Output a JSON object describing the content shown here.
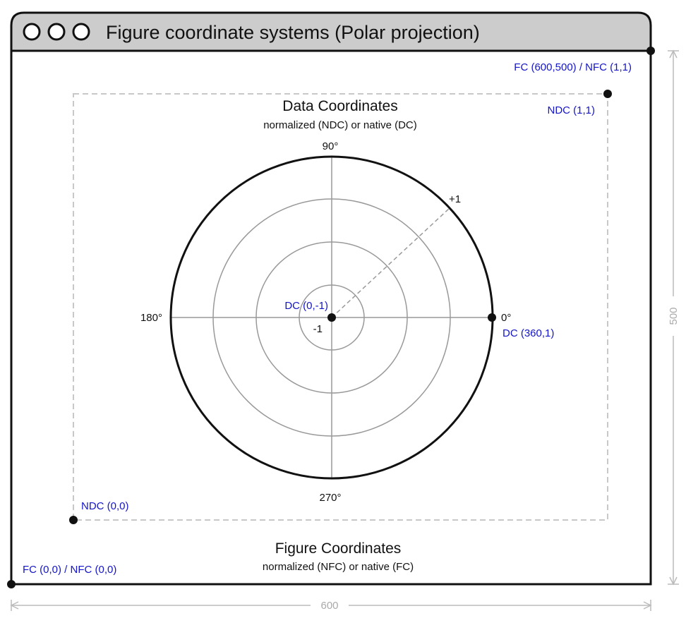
{
  "window": {
    "title": "Figure coordinate systems (Polar projection)",
    "buttons": [
      "close",
      "minimize",
      "maximize"
    ]
  },
  "figure": {
    "heading": "Figure Coordinates",
    "subheading": "normalized (NFC) or native (FC)",
    "corner_top_right": "FC (600,500) / NFC (1,1)",
    "corner_bottom_left": "FC (0,0) / NFC (0,0)",
    "width_label": "600",
    "height_label": "500"
  },
  "data_area": {
    "heading": "Data Coordinates",
    "subheading": "normalized (NDC) or native (DC)",
    "corner_top_right": "NDC (1,1)",
    "corner_bottom_left": "NDC (0,0)"
  },
  "polar": {
    "angle_labels": {
      "a0": "0°",
      "a90": "90°",
      "a180": "180°",
      "a270": "270°"
    },
    "radius_max_label": "+1",
    "radius_min_label": "-1",
    "center_label": "DC (0,-1)",
    "edge_label": "DC (360,1)"
  },
  "colors": {
    "accent": "#1414c8",
    "titlebar": "#cccccc",
    "grid": "#999999",
    "dashed": "#c8c8c8"
  }
}
